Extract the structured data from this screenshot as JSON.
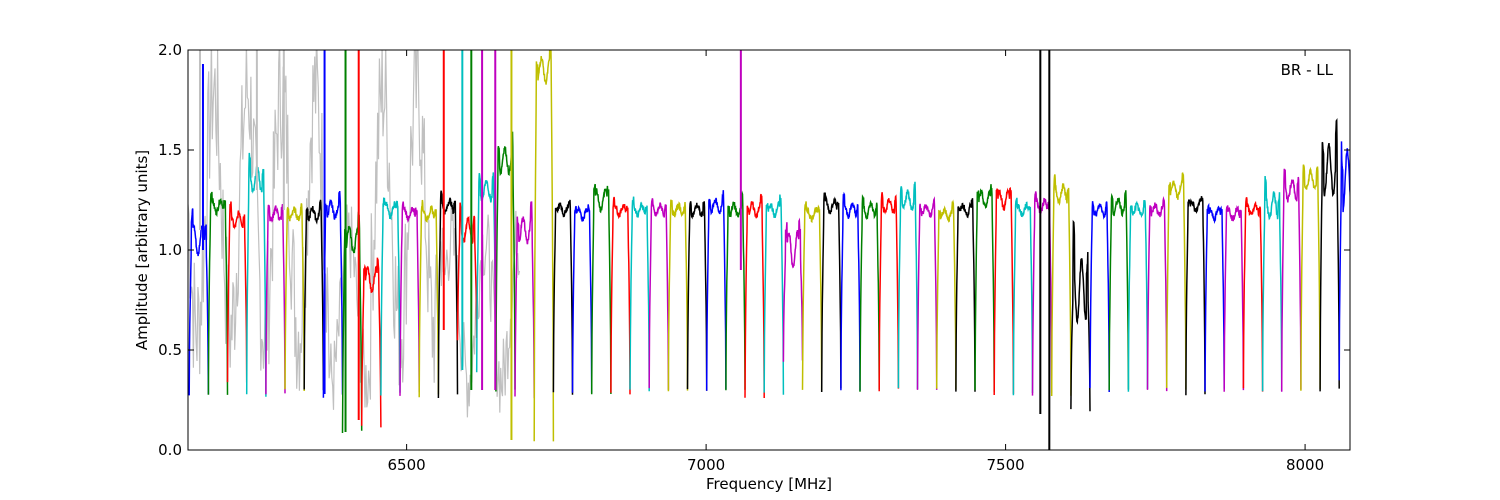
{
  "chart_data": {
    "type": "line",
    "title": "",
    "xlabel": "Frequency [MHz]",
    "ylabel": "Amplitude [arbitrary units]",
    "xlim": [
      6135,
      8075
    ],
    "ylim": [
      0.0,
      2.0
    ],
    "x_ticks": [
      6500,
      7000,
      7500,
      8000
    ],
    "x_tick_labels": [
      "6500",
      "7000",
      "7500",
      "8000"
    ],
    "y_ticks": [
      0.0,
      0.5,
      1.0,
      1.5,
      2.0
    ],
    "y_tick_labels": [
      "0.0",
      "0.5",
      "1.0",
      "1.5",
      "2.0"
    ],
    "grid": false,
    "annotation": "BR - LL",
    "annotation_position": "top-right",
    "channel_width_mhz": 32,
    "start_frequency_mhz": 6137,
    "band_colors": [
      "#0000ff",
      "#008000",
      "#ff0000",
      "#00bfbf",
      "#bf00bf",
      "#bfbf00",
      "#000000"
    ],
    "background_color": "#c0c0c0",
    "series": [
      {
        "band_index": 0,
        "color": "#0000ff",
        "center_level": 1.05,
        "ripple": 0.12,
        "edge_low": 0.28
      },
      {
        "band_index": 1,
        "color": "#008000",
        "center_level": 1.22,
        "ripple": 0.05,
        "edge_low": 0.27
      },
      {
        "band_index": 2,
        "color": "#ff0000",
        "center_level": 1.15,
        "ripple": 0.06,
        "edge_low": 0.33
      },
      {
        "band_index": 3,
        "color": "#00bfbf",
        "center_level": 1.35,
        "ripple": 0.1,
        "edge_low": 0.27
      },
      {
        "band_index": 4,
        "color": "#bf00bf",
        "center_level": 1.18,
        "ripple": 0.05,
        "edge_low": 0.28
      },
      {
        "band_index": 5,
        "color": "#bfbf00",
        "center_level": 1.18,
        "ripple": 0.04,
        "edge_low": 0.3
      },
      {
        "band_index": 6,
        "color": "#000000",
        "center_level": 1.18,
        "ripple": 0.05,
        "edge_low": 0.3
      },
      {
        "band_index": 7,
        "color": "#0000ff",
        "center_level": 1.2,
        "ripple": 0.06,
        "edge_low": 0.27
      },
      {
        "band_index": 8,
        "color": "#008000",
        "center_level": 1.05,
        "ripple": 0.1,
        "edge_low": 0.09
      },
      {
        "band_index": 9,
        "color": "#ff0000",
        "center_level": 0.85,
        "ripple": 0.1,
        "edge_low": 0.12
      },
      {
        "band_index": 10,
        "color": "#00bfbf",
        "center_level": 1.2,
        "ripple": 0.05,
        "edge_low": 0.28
      },
      {
        "band_index": 11,
        "color": "#bf00bf",
        "center_level": 1.18,
        "ripple": 0.04,
        "edge_low": 0.28
      },
      {
        "band_index": 12,
        "color": "#bfbf00",
        "center_level": 1.18,
        "ripple": 0.04,
        "edge_low": 0.27
      },
      {
        "band_index": 13,
        "color": "#000000",
        "center_level": 1.22,
        "ripple": 0.05,
        "edge_low": 0.27
      },
      {
        "band_index": 14,
        "color": "#ff0000",
        "center_level": 1.1,
        "ripple": 0.1,
        "edge_low": 0.55
      },
      {
        "band_index": 15,
        "color": "#00bfbf",
        "center_level": 1.3,
        "ripple": 0.08,
        "edge_low": 0.38
      },
      {
        "band_index": 16,
        "color": "#008000",
        "center_level": 1.45,
        "ripple": 0.1,
        "edge_low": 0.3
      },
      {
        "band_index": 17,
        "color": "#bf00bf",
        "center_level": 1.1,
        "ripple": 0.1,
        "edge_low": 0.26
      },
      {
        "band_index": 18,
        "color": "#bfbf00",
        "center_level": 1.9,
        "ripple": 0.1,
        "edge_low": 0.05
      },
      {
        "band_index": 19,
        "color": "#000000",
        "center_level": 1.2,
        "ripple": 0.04,
        "edge_low": 0.28
      },
      {
        "band_index": 20,
        "color": "#0000ff",
        "center_level": 1.18,
        "ripple": 0.04,
        "edge_low": 0.28
      },
      {
        "band_index": 21,
        "color": "#008000",
        "center_level": 1.25,
        "ripple": 0.08,
        "edge_low": 0.28
      },
      {
        "band_index": 22,
        "color": "#ff0000",
        "center_level": 1.2,
        "ripple": 0.04,
        "edge_low": 0.28
      },
      {
        "band_index": 23,
        "color": "#00bfbf",
        "center_level": 1.2,
        "ripple": 0.04,
        "edge_low": 0.3
      },
      {
        "band_index": 24,
        "color": "#bf00bf",
        "center_level": 1.2,
        "ripple": 0.04,
        "edge_low": 0.3
      },
      {
        "band_index": 25,
        "color": "#bfbf00",
        "center_level": 1.2,
        "ripple": 0.04,
        "edge_low": 0.3
      },
      {
        "band_index": 26,
        "color": "#000000",
        "center_level": 1.2,
        "ripple": 0.04,
        "edge_low": 0.3
      },
      {
        "band_index": 27,
        "color": "#0000ff",
        "center_level": 1.22,
        "ripple": 0.05,
        "edge_low": 0.3
      },
      {
        "band_index": 28,
        "color": "#008000",
        "center_level": 1.2,
        "ripple": 0.05,
        "edge_low": 0.3
      },
      {
        "band_index": 29,
        "color": "#ff0000",
        "center_level": 1.2,
        "ripple": 0.05,
        "edge_low": 0.26
      },
      {
        "band_index": 30,
        "color": "#00bfbf",
        "center_level": 1.2,
        "ripple": 0.05,
        "edge_low": 0.28
      },
      {
        "band_index": 31,
        "color": "#bf00bf",
        "center_level": 1.0,
        "ripple": 0.15,
        "edge_low": 0.45
      },
      {
        "band_index": 32,
        "color": "#bfbf00",
        "center_level": 1.18,
        "ripple": 0.04,
        "edge_low": 0.3
      },
      {
        "band_index": 33,
        "color": "#000000",
        "center_level": 1.22,
        "ripple": 0.05,
        "edge_low": 0.3
      },
      {
        "band_index": 34,
        "color": "#0000ff",
        "center_level": 1.2,
        "ripple": 0.05,
        "edge_low": 0.3
      },
      {
        "band_index": 35,
        "color": "#008000",
        "center_level": 1.2,
        "ripple": 0.05,
        "edge_low": 0.3
      },
      {
        "band_index": 36,
        "color": "#ff0000",
        "center_level": 1.22,
        "ripple": 0.05,
        "edge_low": 0.3
      },
      {
        "band_index": 37,
        "color": "#00bfbf",
        "center_level": 1.25,
        "ripple": 0.07,
        "edge_low": 0.3
      },
      {
        "band_index": 38,
        "color": "#bf00bf",
        "center_level": 1.2,
        "ripple": 0.04,
        "edge_low": 0.3
      },
      {
        "band_index": 39,
        "color": "#bfbf00",
        "center_level": 1.18,
        "ripple": 0.04,
        "edge_low": 0.3
      },
      {
        "band_index": 40,
        "color": "#000000",
        "center_level": 1.2,
        "ripple": 0.04,
        "edge_low": 0.3
      },
      {
        "band_index": 41,
        "color": "#008000",
        "center_level": 1.25,
        "ripple": 0.06,
        "edge_low": 0.3
      },
      {
        "band_index": 42,
        "color": "#ff0000",
        "center_level": 1.25,
        "ripple": 0.07,
        "edge_low": 0.28
      },
      {
        "band_index": 43,
        "color": "#00bfbf",
        "center_level": 1.2,
        "ripple": 0.04,
        "edge_low": 0.28
      },
      {
        "band_index": 44,
        "color": "#bf00bf",
        "center_level": 1.22,
        "ripple": 0.05,
        "edge_low": 0.28
      },
      {
        "band_index": 45,
        "color": "#bfbf00",
        "center_level": 1.28,
        "ripple": 0.06,
        "edge_low": 0.28
      },
      {
        "band_index": 46,
        "color": "#000000",
        "center_level": 0.8,
        "ripple": 0.25,
        "edge_low": 0.2
      },
      {
        "band_index": 47,
        "color": "#0000ff",
        "center_level": 1.2,
        "ripple": 0.04,
        "edge_low": 0.3
      },
      {
        "band_index": 48,
        "color": "#008000",
        "center_level": 1.22,
        "ripple": 0.06,
        "edge_low": 0.3
      },
      {
        "band_index": 49,
        "color": "#00bfbf",
        "center_level": 1.2,
        "ripple": 0.04,
        "edge_low": 0.3
      },
      {
        "band_index": 50,
        "color": "#bf00bf",
        "center_level": 1.2,
        "ripple": 0.04,
        "edge_low": 0.3
      },
      {
        "band_index": 51,
        "color": "#bfbf00",
        "center_level": 1.3,
        "ripple": 0.06,
        "edge_low": 0.3
      },
      {
        "band_index": 52,
        "color": "#000000",
        "center_level": 1.22,
        "ripple": 0.04,
        "edge_low": 0.27
      },
      {
        "band_index": 53,
        "color": "#0000ff",
        "center_level": 1.18,
        "ripple": 0.04,
        "edge_low": 0.3
      },
      {
        "band_index": 54,
        "color": "#bf00bf",
        "center_level": 1.18,
        "ripple": 0.04,
        "edge_low": 0.3
      },
      {
        "band_index": 55,
        "color": "#ff0000",
        "center_level": 1.2,
        "ripple": 0.04,
        "edge_low": 0.3
      },
      {
        "band_index": 56,
        "color": "#00bfbf",
        "center_level": 1.22,
        "ripple": 0.1,
        "edge_low": 0.3
      },
      {
        "band_index": 57,
        "color": "#bf00bf",
        "center_level": 1.3,
        "ripple": 0.08,
        "edge_low": 0.3
      },
      {
        "band_index": 58,
        "color": "#bfbf00",
        "center_level": 1.35,
        "ripple": 0.07,
        "edge_low": 0.3
      },
      {
        "band_index": 59,
        "color": "#000000",
        "center_level": 1.4,
        "ripple": 0.2,
        "edge_low": 0.3
      },
      {
        "band_index": 60,
        "color": "#0000ff",
        "center_level": 1.35,
        "ripple": 0.25,
        "edge_low": 0.35
      }
    ],
    "spikes": [
      {
        "x": 6155,
        "y_from": 1.1,
        "y_to": 2.0,
        "color": "#c0c0c0"
      },
      {
        "x": 6160,
        "y_from": 1.0,
        "y_to": 1.93,
        "color": "#0000ff"
      },
      {
        "x": 6250,
        "y_from": 1.3,
        "y_to": 2.0,
        "color": "#c0c0c0"
      },
      {
        "x": 6295,
        "y_from": 1.2,
        "y_to": 2.0,
        "color": "#c0c0c0"
      },
      {
        "x": 6363,
        "y_from": 0.28,
        "y_to": 2.0,
        "color": "#0000ff"
      },
      {
        "x": 6398,
        "y_from": 0.09,
        "y_to": 2.0,
        "color": "#008000"
      },
      {
        "x": 6420,
        "y_from": 0.15,
        "y_to": 2.0,
        "color": "#ff0000"
      },
      {
        "x": 6562,
        "y_from": 0.6,
        "y_to": 2.0,
        "color": "#ff0000"
      },
      {
        "x": 6593,
        "y_from": 0.4,
        "y_to": 2.0,
        "color": "#00bfbf"
      },
      {
        "x": 6608,
        "y_from": 0.3,
        "y_to": 2.0,
        "color": "#008000"
      },
      {
        "x": 6626,
        "y_from": 0.3,
        "y_to": 2.0,
        "color": "#bf00bf"
      },
      {
        "x": 6648,
        "y_from": 0.3,
        "y_to": 2.0,
        "color": "#bf00bf"
      },
      {
        "x": 6675,
        "y_from": 0.05,
        "y_to": 2.0,
        "color": "#bfbf00"
      },
      {
        "x": 7058,
        "y_from": 0.9,
        "y_to": 2.0,
        "color": "#bf00bf"
      },
      {
        "x": 7558,
        "y_from": 0.18,
        "y_to": 2.0,
        "color": "#000000"
      },
      {
        "x": 7573,
        "y_from": 0.0,
        "y_to": 2.0,
        "color": "#000000"
      }
    ]
  }
}
